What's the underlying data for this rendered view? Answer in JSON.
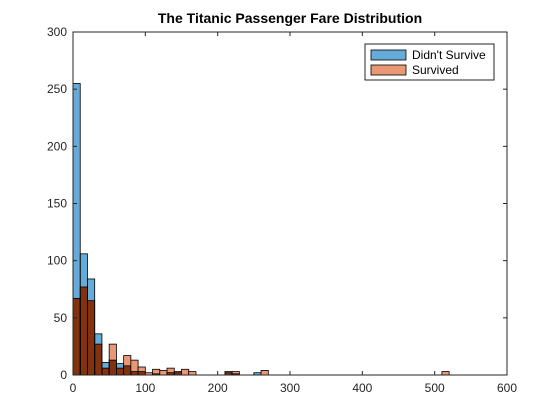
{
  "chart_data": {
    "type": "bar",
    "title": "The Titanic Passenger Fare Distribution",
    "xlabel": "",
    "ylabel": "",
    "xlim": [
      0,
      600
    ],
    "ylim": [
      0,
      300
    ],
    "xticks": [
      "0",
      "100",
      "200",
      "300",
      "400",
      "500",
      "600"
    ],
    "yticks": [
      "0",
      "50",
      "100",
      "150",
      "200",
      "250",
      "300"
    ],
    "grid": false,
    "legend_position": "top-right",
    "bin_width": 10,
    "bin_starts": [
      0,
      10,
      20,
      30,
      40,
      50,
      60,
      70,
      80,
      90,
      100,
      110,
      120,
      130,
      140,
      150,
      160,
      170,
      180,
      190,
      200,
      210,
      220,
      230,
      240,
      250,
      260,
      270,
      280,
      290,
      300,
      310,
      320,
      330,
      340,
      350,
      360,
      370,
      380,
      390,
      400,
      410,
      420,
      430,
      440,
      450,
      460,
      470,
      480,
      490,
      500,
      510
    ],
    "series": [
      {
        "name": "Didn't Survive",
        "color": "#0072BD",
        "values": [
          255,
          106,
          84,
          36,
          11,
          13,
          10,
          8,
          3,
          3,
          0,
          1,
          0,
          2,
          2,
          0,
          0,
          0,
          0,
          0,
          0,
          2,
          1,
          0,
          0,
          2,
          0,
          0,
          0,
          0,
          0,
          0,
          0,
          0,
          0,
          0,
          0,
          0,
          0,
          0,
          0,
          0,
          0,
          0,
          0,
          0,
          0,
          0,
          0,
          0,
          0,
          0
        ]
      },
      {
        "name": "Survived",
        "color": "#D95319",
        "values": [
          67,
          77,
          65,
          27,
          6,
          27,
          6,
          17,
          13,
          7,
          2,
          5,
          4,
          6,
          3,
          5,
          3,
          0,
          0,
          0,
          0,
          3,
          3,
          0,
          0,
          0,
          4,
          0,
          0,
          0,
          0,
          0,
          0,
          0,
          0,
          0,
          0,
          0,
          0,
          0,
          0,
          0,
          0,
          0,
          0,
          0,
          0,
          0,
          0,
          0,
          0,
          3
        ]
      }
    ]
  }
}
